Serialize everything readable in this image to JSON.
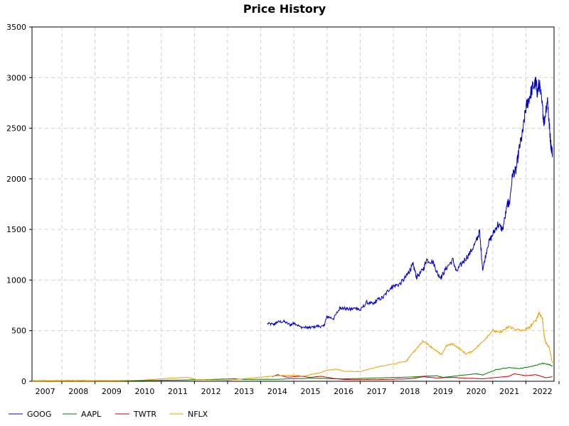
{
  "chart_data": {
    "type": "line",
    "title": "Price History",
    "xlabel": "",
    "ylabel": "",
    "xlim": [
      2006.6,
      2022.35
    ],
    "ylim": [
      0,
      3500
    ],
    "y_ticks": [
      "0",
      "500",
      "1000",
      "1500",
      "2000",
      "2500",
      "3000",
      "3500"
    ],
    "x_ticks": [
      "2007",
      "2008",
      "2009",
      "2010",
      "2011",
      "2012",
      "2013",
      "2014",
      "2015",
      "2016",
      "2017",
      "2018",
      "2019",
      "2020",
      "2021",
      "2022"
    ],
    "grid": true,
    "legend_position": "bottom-left",
    "series": [
      {
        "name": "GOOG",
        "color": "#0000cc",
        "points": [
          [
            2013.7,
            570
          ],
          [
            2013.9,
            560
          ],
          [
            2014.0,
            585
          ],
          [
            2014.2,
            590
          ],
          [
            2014.4,
            555
          ],
          [
            2014.5,
            580
          ],
          [
            2014.7,
            535
          ],
          [
            2014.9,
            530
          ],
          [
            2015.0,
            530
          ],
          [
            2015.2,
            545
          ],
          [
            2015.4,
            540
          ],
          [
            2015.5,
            640
          ],
          [
            2015.7,
            620
          ],
          [
            2015.9,
            730
          ],
          [
            2016.0,
            720
          ],
          [
            2016.2,
            710
          ],
          [
            2016.4,
            725
          ],
          [
            2016.5,
            700
          ],
          [
            2016.7,
            780
          ],
          [
            2016.9,
            760
          ],
          [
            2017.0,
            800
          ],
          [
            2017.2,
            830
          ],
          [
            2017.4,
            920
          ],
          [
            2017.5,
            940
          ],
          [
            2017.7,
            960
          ],
          [
            2017.9,
            1040
          ],
          [
            2018.0,
            1100
          ],
          [
            2018.1,
            1150
          ],
          [
            2018.2,
            1030
          ],
          [
            2018.4,
            1100
          ],
          [
            2018.5,
            1200
          ],
          [
            2018.7,
            1180
          ],
          [
            2018.85,
            1050
          ],
          [
            2018.95,
            1030
          ],
          [
            2019.1,
            1120
          ],
          [
            2019.3,
            1200
          ],
          [
            2019.4,
            1080
          ],
          [
            2019.6,
            1180
          ],
          [
            2019.8,
            1260
          ],
          [
            2020.0,
            1380
          ],
          [
            2020.1,
            1480
          ],
          [
            2020.2,
            1100
          ],
          [
            2020.35,
            1350
          ],
          [
            2020.5,
            1450
          ],
          [
            2020.65,
            1550
          ],
          [
            2020.8,
            1500
          ],
          [
            2020.95,
            1760
          ],
          [
            2021.0,
            1750
          ],
          [
            2021.1,
            2050
          ],
          [
            2021.2,
            2080
          ],
          [
            2021.3,
            2300
          ],
          [
            2021.4,
            2450
          ],
          [
            2021.5,
            2700
          ],
          [
            2021.6,
            2800
          ],
          [
            2021.7,
            2900
          ],
          [
            2021.8,
            2950
          ],
          [
            2021.85,
            2850
          ],
          [
            2021.9,
            2950
          ],
          [
            2022.0,
            2700
          ],
          [
            2022.05,
            2550
          ],
          [
            2022.15,
            2800
          ],
          [
            2022.2,
            2550
          ],
          [
            2022.25,
            2350
          ],
          [
            2022.3,
            2250
          ]
        ]
      },
      {
        "name": "AAPL",
        "color": "#007700",
        "points": [
          [
            2006.6,
            5
          ],
          [
            2007.5,
            6
          ],
          [
            2008.0,
            7
          ],
          [
            2009.0,
            5
          ],
          [
            2010.0,
            8
          ],
          [
            2011.0,
            12
          ],
          [
            2012.0,
            18
          ],
          [
            2012.7,
            25
          ],
          [
            2013.0,
            18
          ],
          [
            2014.0,
            20
          ],
          [
            2015.0,
            30
          ],
          [
            2016.0,
            24
          ],
          [
            2017.0,
            32
          ],
          [
            2018.0,
            42
          ],
          [
            2018.8,
            55
          ],
          [
            2019.0,
            38
          ],
          [
            2020.0,
            75
          ],
          [
            2020.2,
            62
          ],
          [
            2020.6,
            115
          ],
          [
            2021.0,
            135
          ],
          [
            2021.3,
            125
          ],
          [
            2021.7,
            148
          ],
          [
            2022.0,
            178
          ],
          [
            2022.2,
            165
          ],
          [
            2022.3,
            150
          ]
        ]
      },
      {
        "name": "TWTR",
        "color": "#cc0000",
        "points": [
          [
            2013.85,
            45
          ],
          [
            2014.0,
            65
          ],
          [
            2014.3,
            40
          ],
          [
            2014.7,
            50
          ],
          [
            2015.0,
            38
          ],
          [
            2015.3,
            50
          ],
          [
            2015.7,
            28
          ],
          [
            2016.0,
            18
          ],
          [
            2016.5,
            16
          ],
          [
            2017.0,
            17
          ],
          [
            2017.5,
            20
          ],
          [
            2018.0,
            25
          ],
          [
            2018.4,
            45
          ],
          [
            2018.8,
            33
          ],
          [
            2019.3,
            38
          ],
          [
            2019.7,
            30
          ],
          [
            2020.2,
            25
          ],
          [
            2020.6,
            38
          ],
          [
            2021.0,
            50
          ],
          [
            2021.15,
            75
          ],
          [
            2021.5,
            55
          ],
          [
            2021.8,
            65
          ],
          [
            2022.0,
            45
          ],
          [
            2022.1,
            35
          ],
          [
            2022.3,
            45
          ]
        ]
      },
      {
        "name": "NFLX",
        "color": "#e8a000",
        "points": [
          [
            2006.6,
            3
          ],
          [
            2008.0,
            4
          ],
          [
            2009.0,
            5
          ],
          [
            2009.6,
            8
          ],
          [
            2010.0,
            12
          ],
          [
            2010.5,
            25
          ],
          [
            2011.0,
            35
          ],
          [
            2011.3,
            38
          ],
          [
            2011.6,
            15
          ],
          [
            2012.0,
            14
          ],
          [
            2012.5,
            10
          ],
          [
            2013.0,
            25
          ],
          [
            2013.5,
            40
          ],
          [
            2014.0,
            55
          ],
          [
            2014.5,
            60
          ],
          [
            2014.8,
            50
          ],
          [
            2015.0,
            65
          ],
          [
            2015.3,
            85
          ],
          [
            2015.5,
            110
          ],
          [
            2015.8,
            120
          ],
          [
            2016.0,
            100
          ],
          [
            2016.5,
            95
          ],
          [
            2017.0,
            140
          ],
          [
            2017.5,
            170
          ],
          [
            2017.9,
            200
          ],
          [
            2018.0,
            250
          ],
          [
            2018.2,
            320
          ],
          [
            2018.4,
            400
          ],
          [
            2018.6,
            350
          ],
          [
            2018.8,
            300
          ],
          [
            2018.95,
            260
          ],
          [
            2019.1,
            350
          ],
          [
            2019.3,
            370
          ],
          [
            2019.5,
            320
          ],
          [
            2019.7,
            270
          ],
          [
            2019.9,
            300
          ],
          [
            2020.1,
            360
          ],
          [
            2020.3,
            430
          ],
          [
            2020.5,
            500
          ],
          [
            2020.7,
            480
          ],
          [
            2020.9,
            520
          ],
          [
            2021.0,
            540
          ],
          [
            2021.2,
            510
          ],
          [
            2021.4,
            500
          ],
          [
            2021.6,
            530
          ],
          [
            2021.8,
            600
          ],
          [
            2021.9,
            680
          ],
          [
            2022.0,
            620
          ],
          [
            2022.05,
            450
          ],
          [
            2022.1,
            380
          ],
          [
            2022.2,
            340
          ],
          [
            2022.3,
            180
          ]
        ]
      }
    ]
  }
}
